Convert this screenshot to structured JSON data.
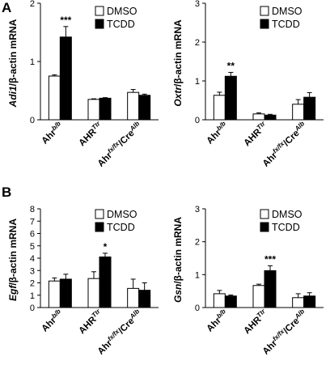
{
  "panels": [
    {
      "letter": "A"
    },
    {
      "letter": "B"
    }
  ],
  "chart_data": [
    {
      "type": "bar",
      "ylabel_italic": "Adi1",
      "ylabel_rest": "/β-actin mRNA",
      "categories": [
        {
          "base": "Ahr",
          "sup": "b/b"
        },
        {
          "base": "AHR",
          "sup": "Ttr"
        },
        {
          "base": "Ahr",
          "sup": "fx/fx",
          "mid": "/Cre",
          "sup2": "Alb"
        }
      ],
      "ylim": [
        0,
        2
      ],
      "yticks": [
        "0",
        "1",
        "2"
      ],
      "series": [
        {
          "name": "DMSO",
          "color": "#ffffff",
          "values": [
            0.75,
            0.35,
            0.47
          ],
          "errors": [
            0.02,
            0.01,
            0.05
          ]
        },
        {
          "name": "TCDD",
          "color": "#000000",
          "values": [
            1.42,
            0.37,
            0.42
          ],
          "errors": [
            0.18,
            0.01,
            0.02
          ]
        }
      ],
      "annotations": [
        {
          "category": 0,
          "series": 1,
          "text": "***"
        }
      ]
    },
    {
      "type": "bar",
      "ylabel_italic": "Oxtr",
      "ylabel_rest": "/β-actin mRNA",
      "categories": [
        {
          "base": "Ahr",
          "sup": "b/b"
        },
        {
          "base": "AHR",
          "sup": "Ttr"
        },
        {
          "base": "Ahr",
          "sup": "fx/fx",
          "mid": "/Cre",
          "sup2": "Alb"
        }
      ],
      "ylim": [
        0,
        3
      ],
      "yticks": [
        "0",
        "1",
        "2",
        "3"
      ],
      "series": [
        {
          "name": "DMSO",
          "color": "#ffffff",
          "values": [
            0.63,
            0.15,
            0.4
          ],
          "errors": [
            0.08,
            0.03,
            0.12
          ]
        },
        {
          "name": "TCDD",
          "color": "#000000",
          "values": [
            1.12,
            0.12,
            0.58
          ],
          "errors": [
            0.1,
            0.02,
            0.12
          ]
        }
      ],
      "annotations": [
        {
          "category": 0,
          "series": 1,
          "text": "**"
        }
      ]
    },
    {
      "type": "bar",
      "ylabel_italic": "Egf",
      "ylabel_rest": "/β-actin mRNA",
      "categories": [
        {
          "base": "Ahr",
          "sup": "b/b"
        },
        {
          "base": "AHR",
          "sup": "Ttr"
        },
        {
          "base": "Ahr",
          "sup": "fx/fx",
          "mid": "/Cre",
          "sup2": "Alb"
        }
      ],
      "ylim": [
        0,
        8
      ],
      "yticks": [
        "0",
        "1",
        "2",
        "3",
        "4",
        "5",
        "6",
        "7",
        "8"
      ],
      "series": [
        {
          "name": "DMSO",
          "color": "#ffffff",
          "values": [
            2.15,
            2.35,
            1.55
          ],
          "errors": [
            0.25,
            0.55,
            0.75
          ]
        },
        {
          "name": "TCDD",
          "color": "#000000",
          "values": [
            2.3,
            4.1,
            1.4
          ],
          "errors": [
            0.4,
            0.3,
            0.6
          ]
        }
      ],
      "annotations": [
        {
          "category": 1,
          "series": 1,
          "text": "*"
        }
      ]
    },
    {
      "type": "bar",
      "ylabel_italic": "Gsn",
      "ylabel_rest": "/β-actin mRNA",
      "categories": [
        {
          "base": "Ahr",
          "sup": "b/b"
        },
        {
          "base": "AHR",
          "sup": "Ttr"
        },
        {
          "base": "Ahr",
          "sup": "fx/fx",
          "mid": "/Cre",
          "sup2": "Alb"
        }
      ],
      "ylim": [
        0,
        3
      ],
      "yticks": [
        "0",
        "1",
        "2",
        "3"
      ],
      "series": [
        {
          "name": "DMSO",
          "color": "#ffffff",
          "values": [
            0.42,
            0.67,
            0.3
          ],
          "errors": [
            0.1,
            0.04,
            0.12
          ]
        },
        {
          "name": "TCDD",
          "color": "#000000",
          "values": [
            0.35,
            1.12,
            0.35
          ],
          "errors": [
            0.03,
            0.15,
            0.1
          ]
        }
      ],
      "annotations": [
        {
          "category": 1,
          "series": 1,
          "text": "***"
        }
      ]
    }
  ]
}
